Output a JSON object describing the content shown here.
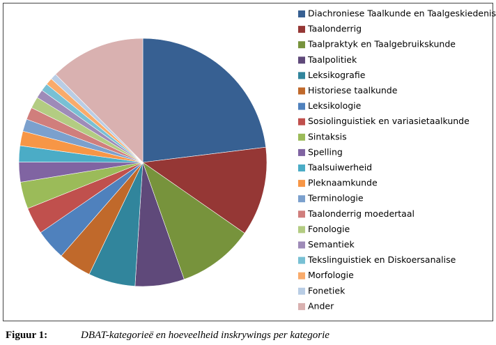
{
  "chart_data": {
    "type": "pie",
    "categories": [
      "Diachroniese Taalkunde en Taalgeskiedenis",
      "Taalonderrig",
      "Taalpraktyk en Taalgebruikskunde",
      "Taalpolitiek",
      "Leksikografie",
      "Historiese taalkunde",
      "Leksikologie",
      "Sosiolinguistiek en variasietaalkunde",
      "Sintaksis",
      "Spelling",
      "Taalsuiwerheid",
      "Pleknaamkunde",
      "Terminologie",
      "Taalonderrig moedertaal",
      "Fonologie",
      "Semantiek",
      "Tekslinguistiek en Diskoersanalise",
      "Morfologie",
      "Fonetiek",
      "Ander"
    ],
    "values": [
      23,
      11.6,
      9.9,
      6.4,
      6.1,
      4.3,
      4,
      3.5,
      3.5,
      2.6,
      2.1,
      1.9,
      1.6,
      1.6,
      1.5,
      1.1,
      1,
      0.9,
      0.8,
      12.4
    ],
    "colors": [
      "#376092",
      "#953735",
      "#77933c",
      "#5f497a",
      "#31859c",
      "#c0692b",
      "#4f81bd",
      "#c0504d",
      "#9bbb59",
      "#8064a2",
      "#4bacc6",
      "#f79646",
      "#7ba0cd",
      "#d07e7c",
      "#b3cc82",
      "#9e8bb8",
      "#78c0d4",
      "#f9ab6b",
      "#b9cde5",
      "#d9b1b0"
    ],
    "legend": "right",
    "caption_label": "Figuur 1:",
    "caption": "DBAT-kategorieë en hoeveelheid inskrywings per kategorie"
  }
}
